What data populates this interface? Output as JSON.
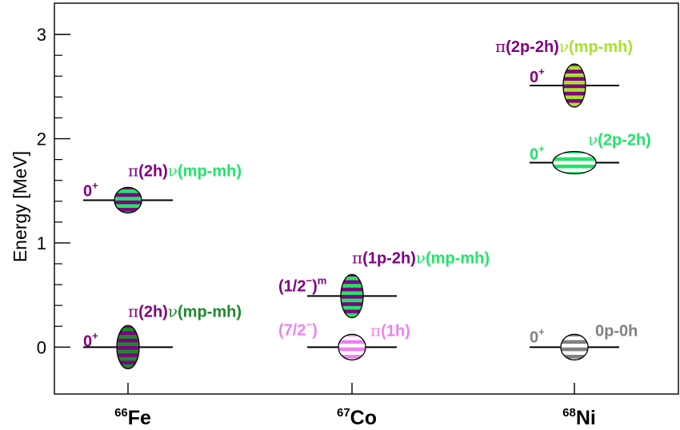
{
  "chart_data": {
    "type": "level_scheme",
    "ylabel": "Energy [MeV]",
    "ylim": [
      -0.45,
      3.3
    ],
    "yticks": [
      0,
      1,
      2,
      3
    ],
    "categories": [
      "66Fe",
      "67Co",
      "68Ni"
    ],
    "category_labels": [
      {
        "mass": "66",
        "element": "Fe"
      },
      {
        "mass": "67",
        "element": "Co"
      },
      {
        "mass": "68",
        "element": "Ni"
      }
    ],
    "levels": [
      {
        "nucleus": "66Fe",
        "energy": 0.0,
        "spin": "0",
        "spin_sup": "+",
        "config": [
          "π",
          "(2h)",
          "ν",
          "(mp-mh)"
        ],
        "config_colors": [
          "#800080",
          "#800080",
          "#1b8a2a",
          "#1b8a2a"
        ],
        "spin_color": "#800080",
        "stripes": [
          "#800080",
          "#1b8a2a"
        ],
        "shape": "tall"
      },
      {
        "nucleus": "66Fe",
        "energy": 1.41,
        "spin": "0",
        "spin_sup": "+",
        "config": [
          "π",
          "(2h)",
          "ν",
          "(mp-mh)"
        ],
        "config_colors": [
          "#800080",
          "#800080",
          "#22e36a",
          "#22e36a"
        ],
        "spin_color": "#800080",
        "stripes": [
          "#800080",
          "#22e36a"
        ],
        "shape": "round"
      },
      {
        "nucleus": "67Co",
        "energy": 0.0,
        "spin": "(7/2",
        "spin_sup": "−",
        "spin_end": ")",
        "config": [
          "π",
          "(1h)"
        ],
        "config_colors": [
          "#ee82ee",
          "#ee82ee"
        ],
        "spin_color": "#ee82ee",
        "stripes": [
          "#ee82ee",
          "#ffffff"
        ],
        "shape": "round"
      },
      {
        "nucleus": "67Co",
        "energy": 0.49,
        "spin": "(1/2",
        "spin_sup": "−",
        "spin_end": ")",
        "spin_end_sup": "m",
        "config": [
          "π",
          "(1p-2h)",
          "ν",
          "(mp-mh)"
        ],
        "config_colors": [
          "#800080",
          "#800080",
          "#22e36a",
          "#22e36a"
        ],
        "spin_color": "#800080",
        "stripes": [
          "#800080",
          "#22e36a"
        ],
        "shape": "tall"
      },
      {
        "nucleus": "68Ni",
        "energy": 0.0,
        "spin": "0",
        "spin_sup": "+",
        "config": [
          "0p-0h"
        ],
        "config_colors": [
          "#808080"
        ],
        "spin_color": "#808080",
        "stripes": [
          "#808080",
          "#ffffff"
        ],
        "shape": "round"
      },
      {
        "nucleus": "68Ni",
        "energy": 1.77,
        "spin": "0",
        "spin_sup": "+",
        "config": [
          "ν",
          "(2p-2h)"
        ],
        "config_colors": [
          "#22e36a",
          "#22e36a"
        ],
        "spin_color": "#22e36a",
        "stripes": [
          "#22e36a",
          "#ffffff"
        ],
        "shape": "wide"
      },
      {
        "nucleus": "68Ni",
        "energy": 2.51,
        "spin": "0",
        "spin_sup": "+",
        "config": [
          "π",
          "(2p-2h)",
          "ν",
          "(mp-mh)"
        ],
        "config_colors": [
          "#800080",
          "#800080",
          "#a6e22e",
          "#a6e22e"
        ],
        "spin_color": "#800080",
        "stripes": [
          "#800080",
          "#a6e22e"
        ],
        "shape": "tall"
      }
    ]
  }
}
